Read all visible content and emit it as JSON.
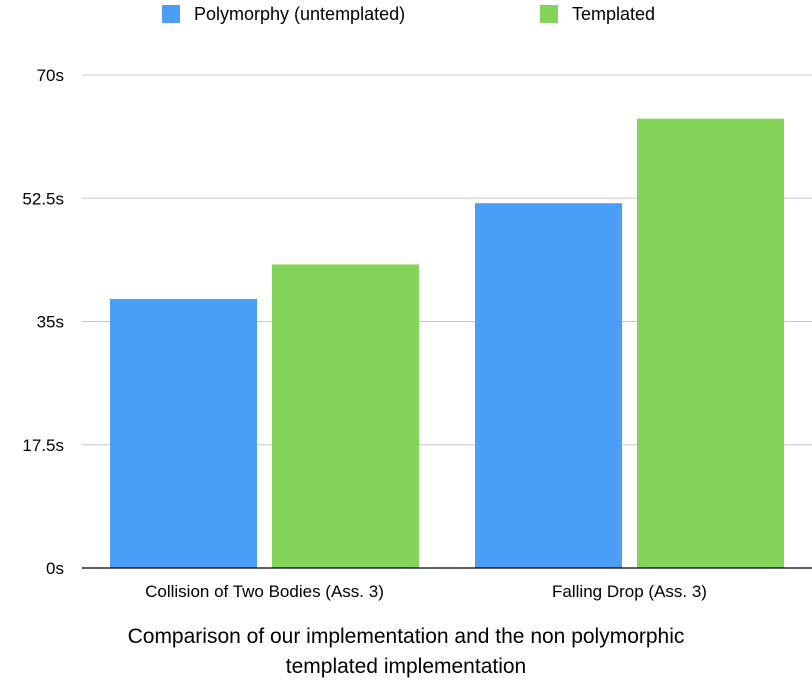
{
  "chart_data": {
    "type": "bar",
    "categories": [
      "Collision of Two Bodies (Ass. 3)",
      "Falling Drop (Ass. 3)"
    ],
    "series": [
      {
        "name": "Polymorphy (untemplated)",
        "values": [
          38.2,
          51.8
        ],
        "color": "#4a9ef7"
      },
      {
        "name": "Templated",
        "values": [
          43.1,
          63.8
        ],
        "color": "#84d45a"
      }
    ],
    "ylim": [
      0,
      70
    ],
    "yticks": [
      0,
      17.5,
      35,
      52.5,
      70
    ],
    "ytick_labels": [
      "0s",
      "17.5s",
      "35s",
      "52.5s",
      "70s"
    ],
    "grid": true,
    "legend_position": "top",
    "title_lines": [
      "Comparison of our implementation and the non polymorphic",
      "templated implementation"
    ]
  }
}
